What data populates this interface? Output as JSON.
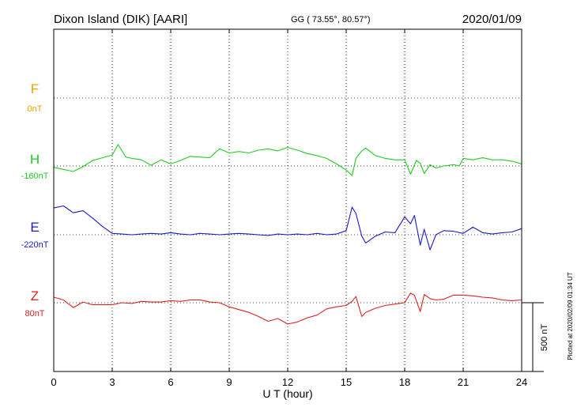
{
  "header": {
    "station": "Dixon Island (DIK)  [AARI]",
    "coords": "GG ( 73.55°,  80.57°)",
    "date": "2020/01/09"
  },
  "footer": {
    "plotted": "Plotted at 2020/02/09 01:34 UT"
  },
  "colors": {
    "F": "#f0a000",
    "H": "#22cc22",
    "E": "#1a1acc",
    "Z": "#dd2222"
  },
  "chart_data": {
    "type": "line",
    "title": "",
    "xlabel": "U T (hour)",
    "xlim": [
      0,
      24
    ],
    "x_ticks": [
      0,
      3,
      6,
      9,
      12,
      15,
      18,
      21,
      24
    ],
    "x_tick_labels": [
      "0",
      "3",
      "6",
      "9",
      "12",
      "15",
      "18",
      "21",
      "24"
    ],
    "grid": "dotted",
    "scale_bar": {
      "label": "500 nT",
      "value": 500
    },
    "series": [
      {
        "name": "F",
        "offset_label": "0nT",
        "color": "#f0a000",
        "x": [],
        "y": []
      },
      {
        "name": "H",
        "offset_label": "-160nT",
        "color": "#22cc22",
        "x": [
          0,
          0.5,
          1,
          1.5,
          2,
          2.5,
          3,
          3.3,
          3.7,
          4,
          4.5,
          5,
          5.5,
          6,
          6.5,
          7,
          7.5,
          8,
          8.5,
          9,
          9.5,
          10,
          10.5,
          11,
          11.5,
          12,
          12.5,
          13,
          13.5,
          14,
          14.5,
          15,
          15.3,
          15.5,
          15.8,
          16,
          16.5,
          17,
          17.5,
          18,
          18.3,
          18.6,
          18.8,
          19,
          19.3,
          19.6,
          20,
          20.5,
          20.8,
          21,
          21.5,
          22,
          22.5,
          23,
          23.5,
          24
        ],
        "y": [
          -10,
          -25,
          -40,
          -5,
          40,
          60,
          80,
          155,
          65,
          55,
          45,
          5,
          45,
          15,
          40,
          70,
          65,
          60,
          125,
          95,
          105,
          95,
          115,
          125,
          110,
          135,
          115,
          90,
          75,
          55,
          15,
          -30,
          -70,
          55,
          110,
          130,
          75,
          55,
          45,
          45,
          -60,
          40,
          20,
          -55,
          10,
          -15,
          0,
          10,
          0,
          55,
          45,
          60,
          45,
          45,
          35,
          15
        ]
      },
      {
        "name": "E",
        "offset_label": "-220nT",
        "color": "#1a1acc",
        "x": [
          0,
          0.5,
          1,
          1.5,
          2,
          2.5,
          3,
          3.5,
          4,
          4.5,
          5,
          5.5,
          6,
          6.5,
          7,
          7.5,
          8,
          8.5,
          9,
          9.5,
          10,
          10.5,
          11,
          11.5,
          12,
          12.5,
          13,
          13.5,
          14,
          14.5,
          15,
          15.3,
          15.5,
          15.8,
          16,
          16.5,
          17,
          17.5,
          18,
          18.3,
          18.5,
          18.8,
          19,
          19.3,
          19.6,
          20,
          20.5,
          21,
          21.5,
          22,
          22.5,
          23,
          23.5,
          24
        ],
        "y": [
          195,
          210,
          160,
          175,
          120,
          60,
          10,
          5,
          0,
          5,
          10,
          5,
          15,
          5,
          0,
          10,
          5,
          0,
          5,
          10,
          5,
          0,
          -5,
          5,
          0,
          5,
          0,
          10,
          0,
          5,
          30,
          200,
          155,
          -10,
          -60,
          -10,
          20,
          15,
          130,
          80,
          140,
          -75,
          40,
          -110,
          0,
          30,
          25,
          10,
          55,
          15,
          5,
          15,
          20,
          45
        ]
      },
      {
        "name": "Z",
        "offset_label": "80nT",
        "color": "#dd2222",
        "x": [
          0,
          0.5,
          1,
          1.5,
          2,
          2.5,
          3,
          3.5,
          4,
          4.5,
          5,
          5.5,
          6,
          6.5,
          7,
          7.5,
          8,
          8.5,
          9,
          9.5,
          10,
          10.5,
          11,
          11.5,
          12,
          12.5,
          13,
          13.5,
          14,
          14.5,
          15,
          15.3,
          15.5,
          15.8,
          16,
          16.5,
          17,
          17.5,
          18,
          18.3,
          18.5,
          18.8,
          19,
          19.3,
          19.6,
          20,
          20.5,
          21,
          21.5,
          22,
          22.5,
          23,
          23.5,
          24
        ],
        "y": [
          40,
          20,
          -35,
          5,
          -15,
          -15,
          -15,
          0,
          -5,
          10,
          5,
          5,
          15,
          10,
          20,
          20,
          5,
          0,
          -30,
          -50,
          -70,
          -100,
          -135,
          -115,
          -155,
          -140,
          -110,
          -90,
          -45,
          -30,
          -20,
          10,
          45,
          -100,
          -70,
          -40,
          -20,
          -10,
          0,
          70,
          55,
          -65,
          60,
          30,
          20,
          25,
          55,
          55,
          50,
          40,
          35,
          20,
          15,
          20
        ]
      }
    ]
  }
}
